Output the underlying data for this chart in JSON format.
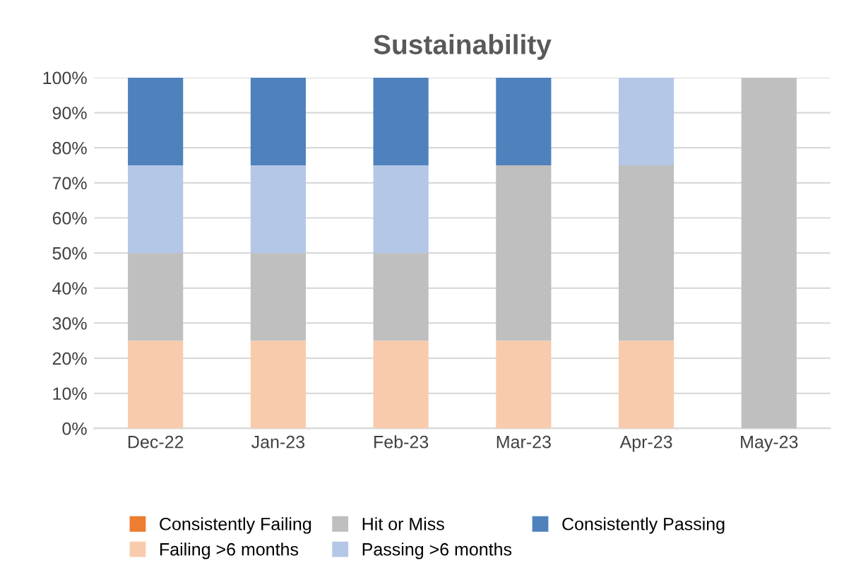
{
  "chart_data": {
    "type": "bar",
    "title": "Sustainability",
    "stacked": true,
    "categories": [
      "Dec-22",
      "Jan-23",
      "Feb-23",
      "Mar-23",
      "Apr-23",
      "May-23"
    ],
    "series": [
      {
        "name": "Consistently Failing",
        "color": "#ed7d31",
        "values": [
          0,
          0,
          0,
          0,
          0,
          0
        ]
      },
      {
        "name": "Failing >6 months",
        "color": "#f8cbad",
        "values": [
          25,
          25,
          25,
          25,
          25,
          0
        ]
      },
      {
        "name": "Hit or Miss",
        "color": "#bfbfbf",
        "values": [
          25,
          25,
          25,
          50,
          50,
          100
        ]
      },
      {
        "name": "Passing >6 months",
        "color": "#b4c7e7",
        "values": [
          25,
          25,
          25,
          0,
          25,
          0
        ]
      },
      {
        "name": "Consistently Passing",
        "color": "#4f81bd",
        "values": [
          25,
          25,
          25,
          25,
          0,
          0
        ]
      }
    ],
    "ylim": [
      0,
      100
    ],
    "yticks": [
      {
        "value": 0,
        "label": "0%"
      },
      {
        "value": 10,
        "label": "10%"
      },
      {
        "value": 20,
        "label": "20%"
      },
      {
        "value": 30,
        "label": "30%"
      },
      {
        "value": 40,
        "label": "40%"
      },
      {
        "value": 50,
        "label": "50%"
      },
      {
        "value": 60,
        "label": "60%"
      },
      {
        "value": 70,
        "label": "70%"
      },
      {
        "value": 80,
        "label": "80%"
      },
      {
        "value": 90,
        "label": "90%"
      },
      {
        "value": 100,
        "label": "100%"
      }
    ],
    "grid": "y",
    "legend": "bottom"
  }
}
